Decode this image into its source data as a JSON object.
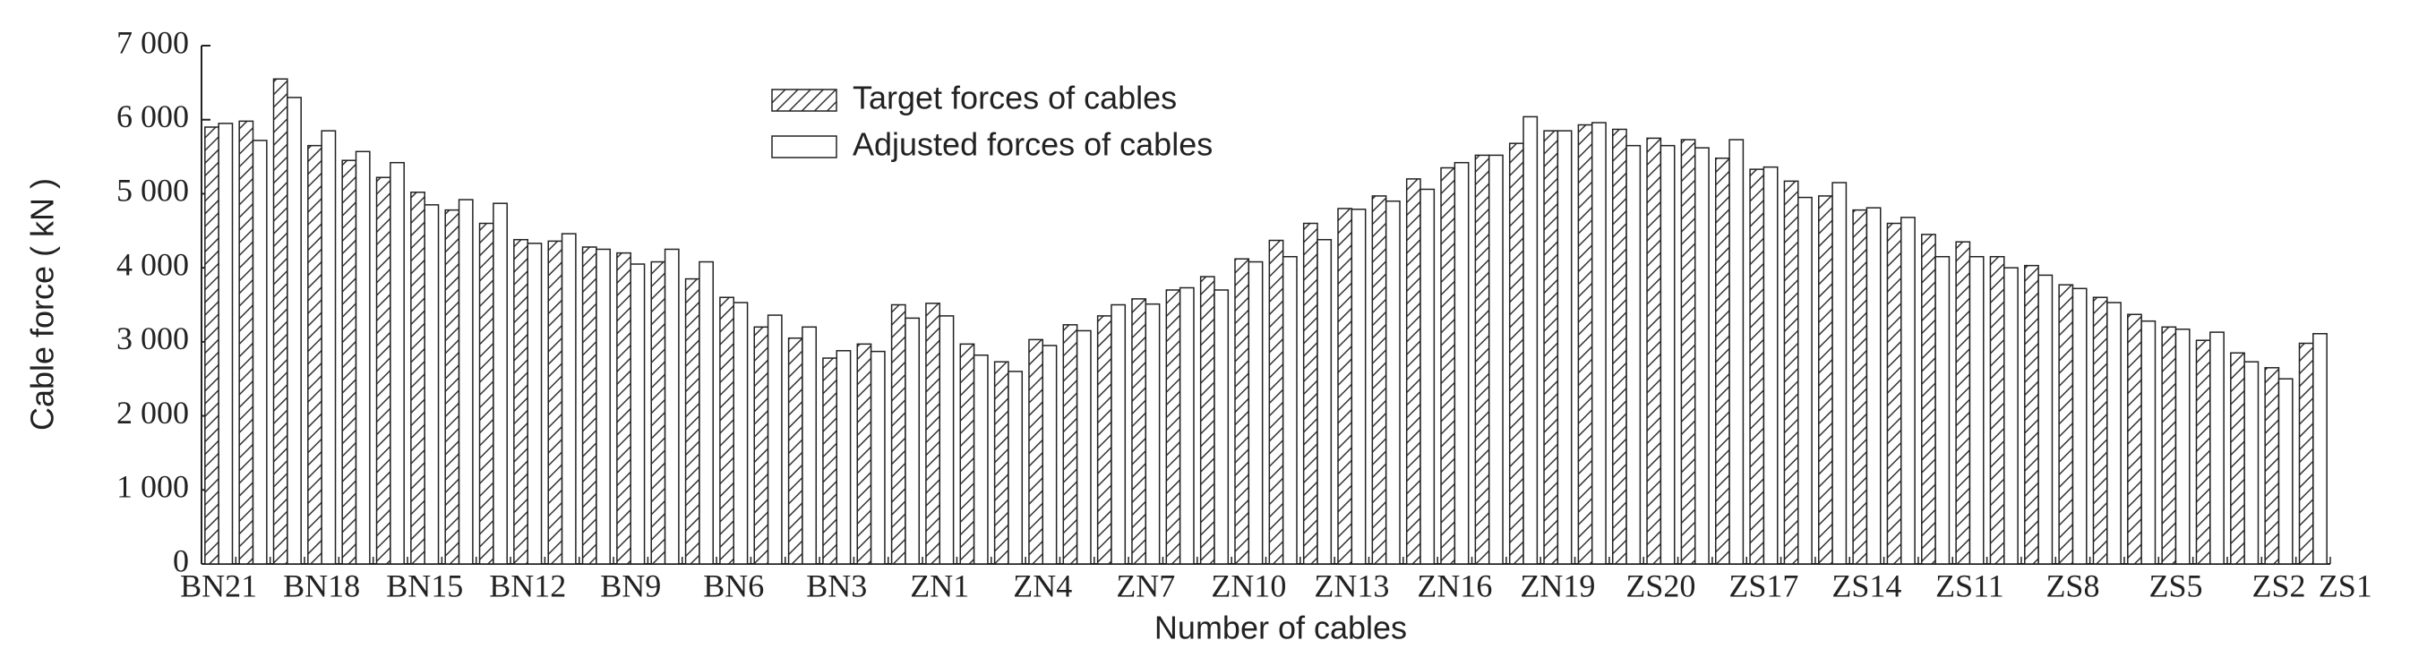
{
  "chart_data": {
    "type": "bar",
    "xlabel": "Number of cables",
    "ylabel": "Cable force ( kN )",
    "categories": [
      "BN21",
      null,
      null,
      "BN18",
      null,
      null,
      "BN15",
      null,
      null,
      "BN12",
      null,
      null,
      "BN9",
      null,
      null,
      "BN6",
      null,
      null,
      "BN3",
      null,
      null,
      "ZN1",
      null,
      null,
      "ZN4",
      null,
      null,
      "ZN7",
      null,
      null,
      "ZN10",
      null,
      null,
      "ZN13",
      null,
      null,
      "ZN16",
      null,
      null,
      "ZN19",
      null,
      null,
      "ZS20",
      null,
      null,
      "ZS17",
      null,
      null,
      "ZS14",
      null,
      null,
      "ZS11",
      null,
      null,
      "ZS8",
      null,
      null,
      "ZS5",
      null,
      null,
      "ZS2",
      "ZS1"
    ],
    "series": [
      {
        "name": "Target forces of cables",
        "color": "#333333",
        "pattern": "hatch",
        "values": [
          5900,
          5980,
          6550,
          5650,
          5450,
          5220,
          5020,
          4780,
          4600,
          4380,
          4360,
          4280,
          4200,
          4080,
          3850,
          3600,
          3200,
          3050,
          2780,
          2970,
          3500,
          3520,
          2970,
          2730,
          3030,
          3230,
          3350,
          3580,
          3700,
          3880,
          4120,
          4370,
          4600,
          4800,
          4970,
          5200,
          5350,
          5520,
          5680,
          5850,
          5930,
          5870,
          5750,
          5730,
          5480,
          5330,
          5170,
          4970,
          4780,
          4600,
          4450,
          4350,
          4150,
          4030,
          3770,
          3600,
          3370,
          3200,
          3020,
          2850,
          2650,
          2980
        ]
      },
      {
        "name": "Adjusted forces of cables",
        "color": "#ffffff",
        "pattern": "solid",
        "values": [
          5950,
          5720,
          6300,
          5850,
          5570,
          5420,
          4850,
          4920,
          4870,
          4330,
          4460,
          4250,
          4050,
          4250,
          4080,
          3530,
          3360,
          3200,
          2880,
          2870,
          3320,
          3350,
          2820,
          2600,
          2950,
          3150,
          3500,
          3510,
          3730,
          3700,
          4080,
          4150,
          4380,
          4790,
          4900,
          5060,
          5420,
          5520,
          6040,
          5850,
          5960,
          5650,
          5650,
          5620,
          5730,
          5360,
          4950,
          5150,
          4810,
          4680,
          4150,
          4150,
          4000,
          3900,
          3720,
          3530,
          3280,
          3170,
          3130,
          2730,
          2500,
          3110
        ]
      }
    ],
    "ylim": [
      0,
      7000
    ],
    "yticks": [
      0,
      {
        "value": 1000,
        "label": "1 000"
      },
      {
        "value": 2000,
        "label": "2 000"
      },
      {
        "value": 3000,
        "label": "3 000"
      },
      {
        "value": 4000,
        "label": "4 000"
      },
      {
        "value": 5000,
        "label": "5 000"
      },
      {
        "value": 6000,
        "label": "6 000"
      },
      {
        "value": 7000,
        "label": "7 000"
      }
    ],
    "grid": false,
    "legend": "top"
  }
}
